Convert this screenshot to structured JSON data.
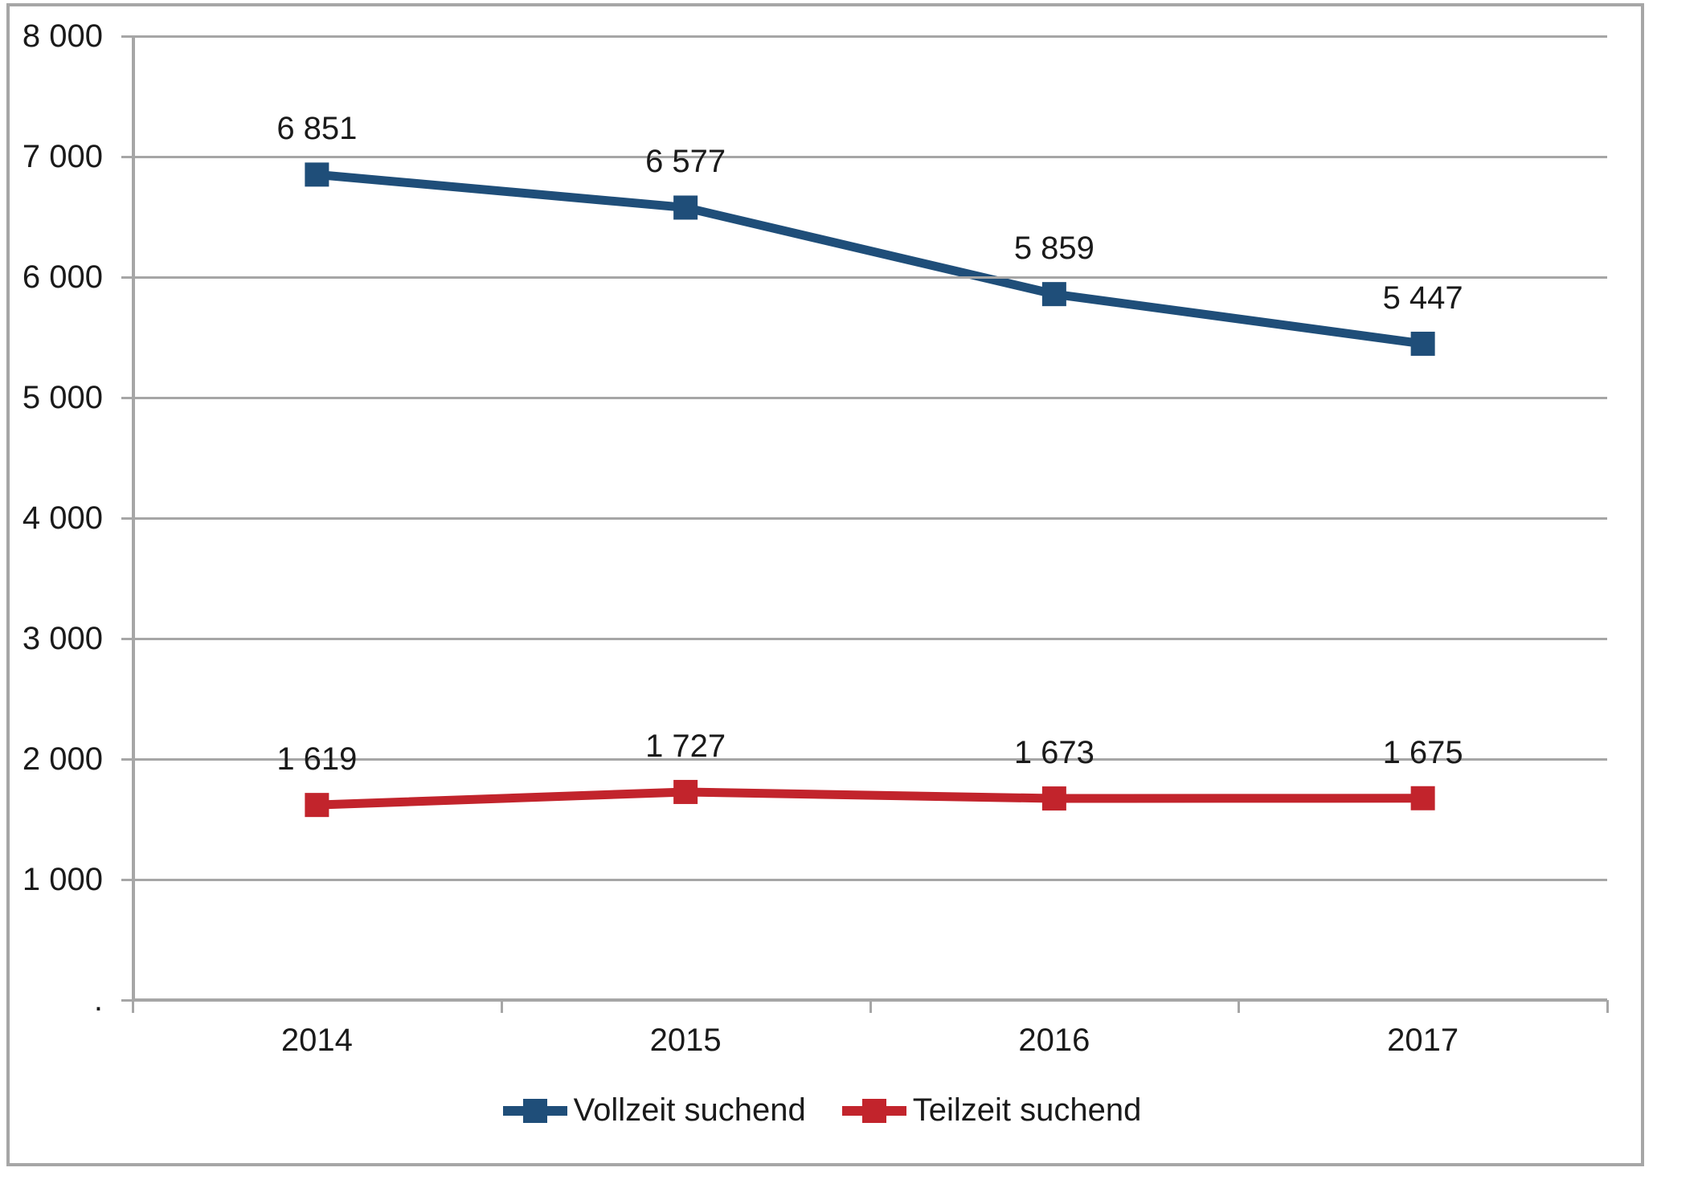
{
  "chart_data": {
    "type": "line",
    "categories": [
      "2014",
      "2015",
      "2016",
      "2017"
    ],
    "series": [
      {
        "name": "Vollzeit suchend",
        "color": "#1F4E79",
        "values": [
          6851,
          6577,
          5859,
          5447
        ],
        "labels": [
          "6 851",
          "6 577",
          "5 859",
          "5 447"
        ]
      },
      {
        "name": "Teilzeit suchend",
        "color": "#C2242C",
        "values": [
          1619,
          1727,
          1673,
          1675
        ],
        "labels": [
          "1 619",
          "1 727",
          "1 673",
          "1 675"
        ]
      }
    ],
    "title": "",
    "xlabel": "",
    "ylabel": "",
    "y_axis": {
      "min": 0,
      "max": 8000,
      "step": 1000,
      "tick_labels_top_to_bottom": [
        "8 000",
        "7 000",
        "6 000",
        "5 000",
        "4 000",
        "3 000",
        "2 000",
        "1 000",
        "."
      ]
    },
    "x_axis": {
      "tick_labels": [
        "2014",
        "2015",
        "2016",
        "2017"
      ]
    },
    "grid": true,
    "marker": "square",
    "legend_position": "bottom"
  },
  "colors": {
    "grid": "#A6A6A6",
    "axis": "#A6A6A6",
    "border": "#A6A6A6",
    "text": "#1A1A1A",
    "background": "#FFFFFF"
  }
}
